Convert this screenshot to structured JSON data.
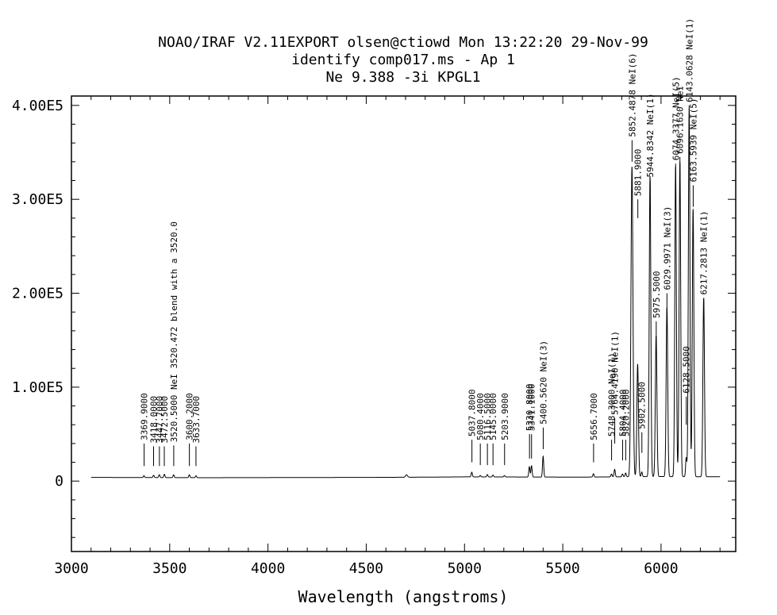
{
  "chart_data": {
    "type": "line",
    "title_lines": [
      "NOAO/IRAF V2.11EXPORT olsen@ctiowd Mon 13:22:20 29-Nov-99",
      "identify comp017.ms - Ap 1",
      "Ne 9.388 -3i KPGL1"
    ],
    "xlabel": "Wavelength (angstroms)",
    "ylabel": "",
    "xlim": [
      3000,
      6380
    ],
    "ylim": [
      -75000,
      410000
    ],
    "x_ticks": [
      3000,
      3500,
      4000,
      4500,
      5000,
      5500,
      6000
    ],
    "y_ticks": [
      {
        "value": 0,
        "label": "0"
      },
      {
        "value": 100000,
        "label": "1.00E5"
      },
      {
        "value": 200000,
        "label": "2.00E5"
      },
      {
        "value": 300000,
        "label": "3.00E5"
      },
      {
        "value": 400000,
        "label": "4.00E5"
      }
    ],
    "x_range": [
      3100,
      6300
    ],
    "baseline": 3800,
    "continuum": [
      [
        3100,
        3900
      ],
      [
        3300,
        3800
      ],
      [
        3500,
        3700
      ],
      [
        3700,
        3600
      ],
      [
        3900,
        3700
      ],
      [
        4200,
        3800
      ],
      [
        4500,
        3900
      ],
      [
        4700,
        4100
      ],
      [
        4900,
        4300
      ],
      [
        5000,
        4500
      ],
      [
        5200,
        4400
      ],
      [
        5400,
        4300
      ],
      [
        5600,
        4200
      ],
      [
        5800,
        4600
      ],
      [
        6000,
        4800
      ],
      [
        6300,
        4600
      ]
    ],
    "emission_lines": [
      {
        "x": 3369,
        "peak": 2000,
        "width": 3
      },
      {
        "x": 3418,
        "peak": 2500,
        "width": 3
      },
      {
        "x": 3447,
        "peak": 3000,
        "width": 3
      },
      {
        "x": 3473,
        "peak": 3500,
        "width": 3
      },
      {
        "x": 3520,
        "peak": 3000,
        "width": 3
      },
      {
        "x": 3600,
        "peak": 3000,
        "width": 3
      },
      {
        "x": 3634,
        "peak": 2000,
        "width": 3
      },
      {
        "x": 4705,
        "peak": 2500,
        "width": 5
      },
      {
        "x": 5037,
        "peak": 5000,
        "width": 3
      },
      {
        "x": 5080,
        "peak": 1500,
        "width": 3
      },
      {
        "x": 5116,
        "peak": 2500,
        "width": 3
      },
      {
        "x": 5145,
        "peak": 2000,
        "width": 3
      },
      {
        "x": 5203,
        "peak": 1500,
        "width": 3
      },
      {
        "x": 5330,
        "peak": 11000,
        "width": 3
      },
      {
        "x": 5341,
        "peak": 12000,
        "width": 3
      },
      {
        "x": 5400,
        "peak": 22000,
        "width": 3
      },
      {
        "x": 5656,
        "peak": 3500,
        "width": 3
      },
      {
        "x": 5748,
        "peak": 3000,
        "width": 3
      },
      {
        "x": 5764,
        "peak": 8000,
        "width": 3
      },
      {
        "x": 5804,
        "peak": 3000,
        "width": 3
      },
      {
        "x": 5820,
        "peak": 4000,
        "width": 3
      },
      {
        "x": 5852,
        "peak": 330000,
        "width": 5
      },
      {
        "x": 5881,
        "peak": 120000,
        "width": 4
      },
      {
        "x": 5902,
        "peak": 5000,
        "width": 3
      },
      {
        "x": 5944,
        "peak": 320000,
        "width": 4
      },
      {
        "x": 5975,
        "peak": 150000,
        "width": 4
      },
      {
        "x": 6030,
        "peak": 180000,
        "width": 4
      },
      {
        "x": 6074,
        "peak": 330000,
        "width": 4
      },
      {
        "x": 6096,
        "peak": 335000,
        "width": 4
      },
      {
        "x": 6128,
        "peak": 20000,
        "width": 3
      },
      {
        "x": 6143,
        "peak": 392000,
        "width": 4
      },
      {
        "x": 6163,
        "peak": 285000,
        "width": 4
      },
      {
        "x": 6217,
        "peak": 190000,
        "width": 4
      }
    ],
    "identified_lines": [
      {
        "x": 3369.9,
        "label": "3369.9000",
        "tick_top": 40000,
        "tick_bottom": 16000
      },
      {
        "x": 3418.0,
        "label": "3418.0000",
        "tick_top": 37000,
        "tick_bottom": 16000
      },
      {
        "x": 3447.7,
        "label": "3447.7000",
        "tick_top": 37000,
        "tick_bottom": 16000
      },
      {
        "x": 3472.5,
        "label": "3472.5000",
        "tick_top": 37000,
        "tick_bottom": 16000
      },
      {
        "x": 3520.5,
        "label": "3520.5000 NeI 3520.472 blend with a 3520.0",
        "tick_top": 38000,
        "tick_bottom": 16000
      },
      {
        "x": 3600.2,
        "label": "3600.2000",
        "tick_top": 40000,
        "tick_bottom": 16000
      },
      {
        "x": 3633.7,
        "label": "3633.7000",
        "tick_top": 37000,
        "tick_bottom": 16000
      },
      {
        "x": 5037.8,
        "label": "5037.8000",
        "tick_top": 44000,
        "tick_bottom": 20000
      },
      {
        "x": 5080.4,
        "label": "5080.4000",
        "tick_top": 40000,
        "tick_bottom": 17000
      },
      {
        "x": 5116.5,
        "label": "5116.5000",
        "tick_top": 40000,
        "tick_bottom": 17000
      },
      {
        "x": 5145.0,
        "label": "5145.0000",
        "tick_top": 40000,
        "tick_bottom": 17000
      },
      {
        "x": 5203.9,
        "label": "5203.9000",
        "tick_top": 40000,
        "tick_bottom": 17000
      },
      {
        "x": 5330.8,
        "label": "5330.8000",
        "tick_top": 50000,
        "tick_bottom": 24000
      },
      {
        "x": 5341.1,
        "label": "5341.1000",
        "tick_top": 50000,
        "tick_bottom": 24000
      },
      {
        "x": 5400.562,
        "label": "5400.5620 NeI(3)",
        "tick_top": 57000,
        "tick_bottom": 34000
      },
      {
        "x": 5656.7,
        "label": "5656.7000",
        "tick_top": 40000,
        "tick_bottom": 20000
      },
      {
        "x": 5748.3,
        "label": "5748.3000 NeI(1)",
        "tick_top": 44000,
        "tick_bottom": 22000
      },
      {
        "x": 5764.4,
        "label": "5764.4190 NeI(1)",
        "tick_top": 67000,
        "tick_bottom": 40000
      },
      {
        "x": 5804.4,
        "label": "5804.4000",
        "tick_top": 44000,
        "tick_bottom": 22000
      },
      {
        "x": 5820.2,
        "label": "5820.2000",
        "tick_top": 44000,
        "tick_bottom": 22000
      },
      {
        "x": 5852.4878,
        "label": "5852.4878 NeI(6)",
        "tick_top": 363000,
        "tick_bottom": 340000
      },
      {
        "x": 5881.9,
        "label": "5881.9000",
        "tick_top": 300000,
        "tick_bottom": 280000
      },
      {
        "x": 5902.5,
        "label": "5902.5000",
        "tick_top": 52000,
        "tick_bottom": 30000
      },
      {
        "x": 5944.8342,
        "label": "5944.8342 NeI(1)",
        "tick_top": 320000,
        "tick_bottom": 298000
      },
      {
        "x": 5975.5,
        "label": "5975.5000",
        "tick_top": 170000,
        "tick_bottom": 150000
      },
      {
        "x": 6029.9971,
        "label": "6029.9971 NeI(3)",
        "tick_top": 200000,
        "tick_bottom": 178000
      },
      {
        "x": 6074.3377,
        "label": "6074.3377 NeI(5)",
        "tick_top": 338000,
        "tick_bottom": 315000
      },
      {
        "x": 6096.163,
        "label": "6096.1630 NeI",
        "tick_top": 345000,
        "tick_bottom": 322000
      },
      {
        "x": 6128.5,
        "label": "6128.5000",
        "tick_top": 90000,
        "tick_bottom": 60000
      },
      {
        "x": 6143.0628,
        "label": "6143.0628 NeI(1)",
        "tick_top": 400000,
        "tick_bottom": 395000
      },
      {
        "x": 6163.5939,
        "label": "6163.5939 NeI(5)",
        "tick_top": 315000,
        "tick_bottom": 292000
      },
      {
        "x": 6217.2813,
        "label": "6217.2813 NeI(1)",
        "tick_top": 195000,
        "tick_bottom": 172000
      }
    ],
    "grid": false,
    "legend": "none",
    "colors": {
      "line": "#000000",
      "background": "#ffffff"
    }
  }
}
